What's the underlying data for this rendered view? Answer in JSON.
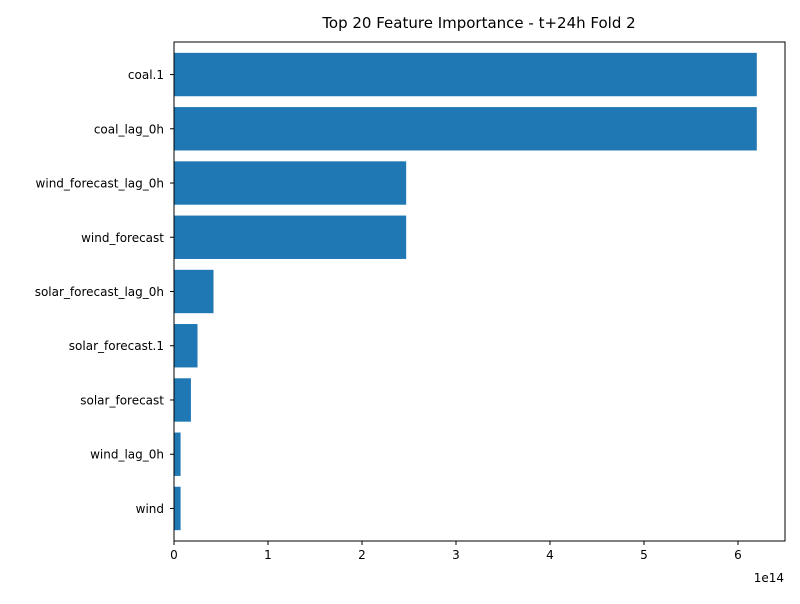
{
  "chart_data": {
    "type": "bar",
    "orientation": "horizontal",
    "title": "Top 20 Feature Importance - t+24h Fold 2",
    "xlabel": "",
    "ylabel": "",
    "x_scale_label": "1e14",
    "xlim": [
      0,
      6.5
    ],
    "xticks": [
      "0",
      "1",
      "2",
      "3",
      "4",
      "5",
      "6"
    ],
    "categories": [
      "coal.1",
      "coal_lag_0h",
      "wind_forecast_lag_0h",
      "wind_forecast",
      "solar_forecast_lag_0h",
      "solar_forecast.1",
      "solar_forecast",
      "wind_lag_0h",
      "wind"
    ],
    "values": [
      6.2,
      6.2,
      2.47,
      2.47,
      0.42,
      0.25,
      0.18,
      0.07,
      0.07
    ],
    "grid": false,
    "legend": "none",
    "colors": {
      "bar": "#1f77b4",
      "axis": "#000000",
      "background": "#ffffff"
    }
  }
}
